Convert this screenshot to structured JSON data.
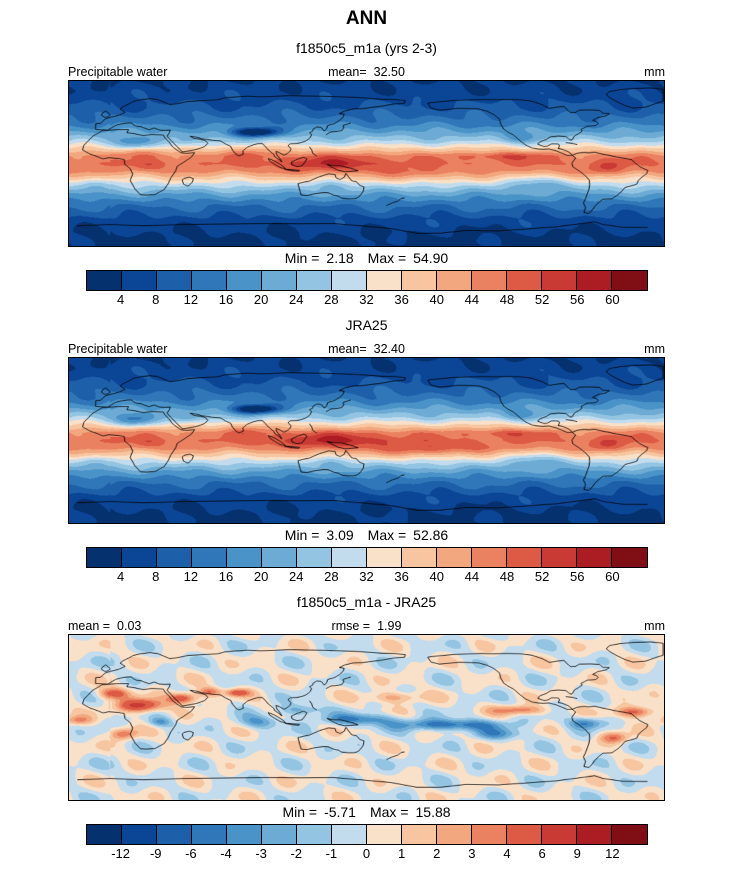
{
  "title": "ANN",
  "palette": [
    "#05316e",
    "#0b4596",
    "#1d5fa8",
    "#2f77b8",
    "#4a93c8",
    "#6dabd5",
    "#93c4e1",
    "#c2dcee",
    "#f9e0c8",
    "#f7c5a0",
    "#f2a77e",
    "#ea8160",
    "#dd5a45",
    "#c93a34",
    "#ab1d22",
    "#7f0e15"
  ],
  "chart_data": [
    {
      "type": "heatmap",
      "title": "f1850c5_m1a (yrs 2-3)",
      "field_label": "Precipitable water",
      "units": "mm",
      "stats": {
        "mean_label": "mean=",
        "mean": "32.50",
        "min_label": "Min =",
        "min": "2.18",
        "max_label": "Max =",
        "max": "54.90"
      },
      "colorbar": {
        "levels": [
          4,
          8,
          12,
          16,
          20,
          24,
          28,
          32,
          36,
          40,
          44,
          48,
          52,
          56,
          60
        ],
        "tick_labels": [
          "4",
          "8",
          "12",
          "16",
          "20",
          "24",
          "28",
          "32",
          "36",
          "40",
          "44",
          "48",
          "52",
          "56",
          "60"
        ]
      },
      "approx_zonal_profile": {
        "lat": [
          90,
          75,
          60,
          45,
          35,
          25,
          15,
          8,
          0,
          -8,
          -15,
          -25,
          -35,
          -45,
          -60,
          -75,
          -90
        ],
        "value": [
          4,
          6,
          9,
          14,
          20,
          27,
          38,
          46,
          48,
          45,
          38,
          28,
          19,
          13,
          7,
          4,
          2.5
        ]
      },
      "anomaly_features": [
        {
          "lon": 88,
          "lat": 34,
          "sx": 14,
          "sy": 5,
          "amp": -26
        },
        {
          "lon": 15,
          "lat": 22,
          "sx": 14,
          "sy": 7,
          "amp": -10
        },
        {
          "lon": 45,
          "lat": 24,
          "sx": 9,
          "sy": 6,
          "amp": -6
        },
        {
          "lon": 248,
          "lat": 28,
          "sx": 12,
          "sy": 6,
          "amp": -6
        },
        {
          "lon": 135,
          "lat": 0,
          "sx": 35,
          "sy": 9,
          "amp": 8
        },
        {
          "lon": 85,
          "lat": 12,
          "sx": 14,
          "sy": 7,
          "amp": 5
        },
        {
          "lon": 240,
          "lat": 8,
          "sx": 25,
          "sy": 5,
          "amp": 6
        },
        {
          "lon": 185,
          "lat": -12,
          "sx": 22,
          "sy": 7,
          "amp": 5
        },
        {
          "lon": 260,
          "lat": -22,
          "sx": 20,
          "sy": 8,
          "amp": -8
        },
        {
          "lon": 350,
          "lat": -22,
          "sx": 12,
          "sy": 6,
          "amp": -4
        },
        {
          "lon": 300,
          "lat": -5,
          "sx": 12,
          "sy": 7,
          "amp": 6
        },
        {
          "lon": 22,
          "lat": -3,
          "sx": 8,
          "sy": 5,
          "amp": 4
        },
        {
          "lon": 18,
          "lat": 13,
          "sx": 12,
          "sy": 5,
          "amp": 4
        },
        {
          "lon": 133,
          "lat": -25,
          "sx": 12,
          "sy": 6,
          "amp": -5
        }
      ],
      "noise_amp": 2.0,
      "noise_phase": 0
    },
    {
      "type": "heatmap",
      "title": "JRA25",
      "field_label": "Precipitable water",
      "units": "mm",
      "stats": {
        "mean_label": "mean=",
        "mean": "32.40",
        "min_label": "Min =",
        "min": "3.09",
        "max_label": "Max =",
        "max": "52.86"
      },
      "colorbar": {
        "levels": [
          4,
          8,
          12,
          16,
          20,
          24,
          28,
          32,
          36,
          40,
          44,
          48,
          52,
          56,
          60
        ],
        "tick_labels": [
          "4",
          "8",
          "12",
          "16",
          "20",
          "24",
          "28",
          "32",
          "36",
          "40",
          "44",
          "48",
          "52",
          "56",
          "60"
        ]
      },
      "approx_zonal_profile": {
        "lat": [
          90,
          75,
          60,
          45,
          35,
          25,
          15,
          8,
          0,
          -8,
          -15,
          -25,
          -35,
          -45,
          -60,
          -75,
          -90
        ],
        "value": [
          4,
          6,
          9,
          14,
          20,
          27,
          38,
          46,
          48,
          45,
          38,
          28,
          19,
          13,
          7,
          4,
          3
        ]
      },
      "anomaly_features": [
        {
          "lon": 88,
          "lat": 34,
          "sx": 14,
          "sy": 5,
          "amp": -26
        },
        {
          "lon": 15,
          "lat": 22,
          "sx": 14,
          "sy": 7,
          "amp": -13
        },
        {
          "lon": 45,
          "lat": 24,
          "sx": 9,
          "sy": 6,
          "amp": -8
        },
        {
          "lon": 248,
          "lat": 28,
          "sx": 12,
          "sy": 6,
          "amp": -6
        },
        {
          "lon": 135,
          "lat": 0,
          "sx": 38,
          "sy": 9,
          "amp": 9
        },
        {
          "lon": 85,
          "lat": 12,
          "sx": 14,
          "sy": 7,
          "amp": 5
        },
        {
          "lon": 240,
          "lat": 8,
          "sx": 25,
          "sy": 5,
          "amp": 5
        },
        {
          "lon": 185,
          "lat": -12,
          "sx": 22,
          "sy": 7,
          "amp": 5
        },
        {
          "lon": 205,
          "lat": -8,
          "sx": 30,
          "sy": 6,
          "amp": 4
        },
        {
          "lon": 260,
          "lat": -22,
          "sx": 20,
          "sy": 8,
          "amp": -8
        },
        {
          "lon": 350,
          "lat": -22,
          "sx": 12,
          "sy": 6,
          "amp": -4
        },
        {
          "lon": 300,
          "lat": -5,
          "sx": 12,
          "sy": 7,
          "amp": 6
        },
        {
          "lon": 22,
          "lat": -3,
          "sx": 8,
          "sy": 5,
          "amp": 4
        },
        {
          "lon": 133,
          "lat": -25,
          "sx": 12,
          "sy": 6,
          "amp": -5
        }
      ],
      "noise_amp": 2.0,
      "noise_phase": 0
    },
    {
      "type": "heatmap",
      "title": "f1850c5_m1a - JRA25",
      "units": "mm",
      "stats": {
        "mean_label": "mean =",
        "mean": "0.03",
        "rmse_label": "rmse =",
        "rmse": "1.99",
        "min_label": "Min =",
        "min": "-5.71",
        "max_label": "Max =",
        "max": "15.88"
      },
      "colorbar": {
        "levels": [
          -12,
          -9,
          -6,
          -4,
          -3,
          -2,
          -1,
          0,
          1,
          2,
          3,
          4,
          6,
          9,
          12
        ],
        "tick_labels": [
          "-12",
          "-9",
          "-6",
          "-4",
          "-3",
          "-2",
          "-1",
          "0",
          "1",
          "2",
          "3",
          "4",
          "6",
          "9",
          "12"
        ]
      },
      "approx_zonal_profile": {
        "lat": [
          90,
          0,
          -90
        ],
        "value": [
          0,
          0,
          0
        ]
      },
      "anomaly_features": [
        {
          "lon": 2,
          "lat": 26,
          "sx": 9,
          "sy": 6,
          "amp": 5
        },
        {
          "lon": 18,
          "lat": 13,
          "sx": 13,
          "sy": 7,
          "amp": 7
        },
        {
          "lon": 8,
          "lat": -18,
          "sx": 8,
          "sy": 6,
          "amp": 4
        },
        {
          "lon": 30,
          "lat": -5,
          "sx": 7,
          "sy": 5,
          "amp": -3
        },
        {
          "lon": 44,
          "lat": 21,
          "sx": 9,
          "sy": 6,
          "amp": 6
        },
        {
          "lon": 60,
          "lat": 28,
          "sx": 7,
          "sy": 5,
          "amp": 4
        },
        {
          "lon": 77,
          "lat": 27,
          "sx": 7,
          "sy": 4,
          "amp": 5
        },
        {
          "lon": 90,
          "lat": -5,
          "sx": 12,
          "sy": 7,
          "amp": -3
        },
        {
          "lon": 115,
          "lat": 8,
          "sx": 12,
          "sy": 6,
          "amp": -3
        },
        {
          "lon": 150,
          "lat": -2,
          "sx": 22,
          "sy": 6,
          "amp": -4
        },
        {
          "lon": 172,
          "lat": 22,
          "sx": 16,
          "sy": 6,
          "amp": 3
        },
        {
          "lon": 205,
          "lat": -8,
          "sx": 33,
          "sy": 6,
          "amp": -5
        },
        {
          "lon": 235,
          "lat": -18,
          "sx": 15,
          "sy": 6,
          "amp": -3
        },
        {
          "lon": 248,
          "lat": 8,
          "sx": 16,
          "sy": 5,
          "amp": 4
        },
        {
          "lon": 288,
          "lat": -6,
          "sx": 10,
          "sy": 6,
          "amp": -4
        },
        {
          "lon": 305,
          "lat": -22,
          "sx": 9,
          "sy": 6,
          "amp": 4
        },
        {
          "lon": 318,
          "lat": 6,
          "sx": 12,
          "sy": 6,
          "amp": 5
        },
        {
          "lon": 340,
          "lat": -3,
          "sx": 9,
          "sy": 5,
          "amp": 3
        }
      ],
      "noise_amp": 1.2,
      "noise_phase": 2.5
    }
  ]
}
